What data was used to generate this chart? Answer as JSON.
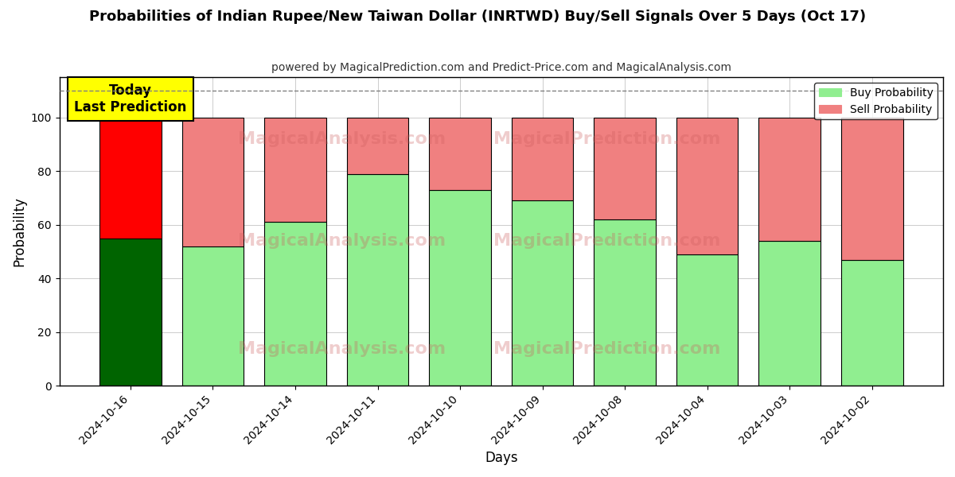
{
  "title": "Probabilities of Indian Rupee/New Taiwan Dollar (INRTWD) Buy/Sell Signals Over 5 Days (Oct 17)",
  "subtitle": "powered by MagicalPrediction.com and Predict-Price.com and MagicalAnalysis.com",
  "xlabel": "Days",
  "ylabel": "Probability",
  "categories": [
    "2024-10-16",
    "2024-10-15",
    "2024-10-14",
    "2024-10-11",
    "2024-10-10",
    "2024-10-09",
    "2024-10-08",
    "2024-10-04",
    "2024-10-03",
    "2024-10-02"
  ],
  "buy_values": [
    55,
    52,
    61,
    79,
    73,
    69,
    62,
    49,
    54,
    47
  ],
  "sell_values": [
    45,
    48,
    39,
    21,
    27,
    31,
    38,
    51,
    46,
    53
  ],
  "buy_color_first": "#006400",
  "buy_color_rest": "#90EE90",
  "sell_color_first": "#FF0000",
  "sell_color_rest": "#F08080",
  "bar_edge_color": "#000000",
  "annotation_text": "Today\nLast Prediction",
  "annotation_bg": "#FFFF00",
  "ylim": [
    0,
    115
  ],
  "yticks": [
    0,
    20,
    40,
    60,
    80,
    100
  ],
  "dashed_line_y": 110,
  "legend_buy_label": "Buy Probability",
  "legend_sell_label": "Sell Probability",
  "background_color": "#ffffff",
  "grid_color": "#cccccc",
  "watermark1_text": "MagicalAnalysis.com",
  "watermark2_text": "MagicalPrediction.com",
  "watermark_color": "#cd5c5c",
  "watermark_alpha": 0.3
}
